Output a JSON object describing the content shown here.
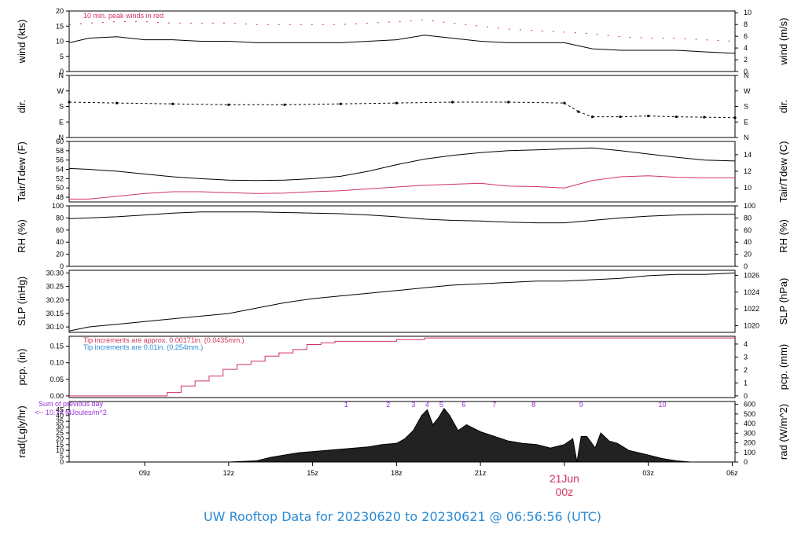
{
  "title": "UW Rooftop Data for 20230620  to  20230621 @ 06:56:56  (UTC)",
  "colors": {
    "primary": "#000000",
    "secondary": "#d1345b",
    "blue": "#2a8ad4",
    "purple": "#9b30d9"
  },
  "x_axis": {
    "ticks": [
      "09z",
      "12z",
      "15z",
      "18z",
      "21z",
      "00z",
      "03z",
      "06z"
    ],
    "date_label": "21Jun",
    "date_sub": "00z"
  },
  "chart_data": [
    {
      "type": "line",
      "ylabel": "wind (kts)",
      "ylabel_right": "wind (m/s)",
      "ylim": [
        0,
        20
      ],
      "yticks": [
        0,
        5,
        10,
        15,
        20
      ],
      "yticks_right": [
        0,
        2,
        4,
        6,
        8,
        10
      ],
      "annotation": "10 min. peak winds in red",
      "series": [
        {
          "x": [
            6.3,
            7,
            8,
            9,
            10,
            11,
            12,
            13,
            14,
            15,
            16,
            17,
            18,
            19,
            20,
            21,
            22,
            23,
            24,
            25,
            26,
            27,
            28,
            29,
            30.1
          ],
          "y": [
            9.5,
            11,
            11.5,
            10.5,
            10.5,
            10,
            10,
            9.5,
            9.5,
            9.5,
            9.5,
            10,
            10.5,
            12,
            11,
            10,
            9.5,
            9.5,
            9.5,
            7.5,
            7,
            7,
            7,
            6.5,
            6
          ]
        },
        {
          "x": [
            6.3,
            7,
            8,
            9,
            10,
            11,
            12,
            13,
            14,
            15,
            16,
            17,
            18,
            19,
            20,
            21,
            22,
            23,
            24,
            25,
            26,
            27,
            28,
            29,
            30.1
          ],
          "y": [
            15.5,
            16,
            16.5,
            16.5,
            16,
            16,
            16,
            15.5,
            15.5,
            15.5,
            15.5,
            16,
            16.5,
            17,
            16,
            15,
            14,
            13.5,
            13,
            12.5,
            11.5,
            11,
            11,
            10.5,
            10
          ]
        }
      ]
    },
    {
      "type": "scatter",
      "ylabel": "dir.",
      "ylabel_right": "dir.",
      "ytick_labels": [
        "N",
        "E",
        "S",
        "W",
        "N"
      ],
      "ylim": [
        0,
        360
      ],
      "series": [
        {
          "x": [
            6.3,
            8,
            10,
            12,
            14,
            16,
            18,
            20,
            22,
            24,
            24.5,
            25,
            26,
            27,
            28,
            29,
            30.1
          ],
          "y": [
            205,
            200,
            195,
            190,
            190,
            195,
            200,
            205,
            205,
            200,
            150,
            120,
            120,
            125,
            120,
            118,
            115
          ]
        }
      ]
    },
    {
      "type": "line",
      "ylabel": "Tair/Tdew (F)",
      "ylabel_right": "Tair/Tdew (C)",
      "ylim": [
        47,
        60
      ],
      "yticks": [
        48,
        50,
        52,
        54,
        56,
        58,
        60
      ],
      "yticks_right": [
        10,
        12,
        14
      ],
      "series": [
        {
          "x": [
            6.3,
            7,
            8,
            9,
            10,
            11,
            12,
            13,
            14,
            15,
            16,
            17,
            18,
            19,
            20,
            21,
            22,
            23,
            24,
            25,
            26,
            27,
            28,
            29,
            30.1
          ],
          "y": [
            54.2,
            54,
            53.6,
            53,
            52.4,
            52,
            51.7,
            51.6,
            51.7,
            52,
            52.5,
            53.6,
            55,
            56.2,
            57,
            57.6,
            58,
            58.2,
            58.4,
            58.6,
            58,
            57.3,
            56.6,
            56,
            55.8
          ]
        },
        {
          "x": [
            6.3,
            7,
            8,
            9,
            10,
            11,
            12,
            13,
            14,
            15,
            16,
            17,
            18,
            19,
            20,
            21,
            22,
            23,
            24,
            25,
            26,
            27,
            28,
            29,
            30.1
          ],
          "y": [
            47.6,
            47.6,
            48.2,
            48.8,
            49.2,
            49.2,
            49,
            48.8,
            48.9,
            49.2,
            49.4,
            49.8,
            50.2,
            50.6,
            50.8,
            51,
            50.4,
            50.3,
            50,
            51.6,
            52.4,
            52.6,
            52.3,
            52.2,
            52.2
          ]
        }
      ]
    },
    {
      "type": "line",
      "ylabel": "RH (%)",
      "ylabel_right": "RH (%)",
      "ylim": [
        0,
        100
      ],
      "yticks": [
        0,
        20,
        40,
        60,
        80,
        100
      ],
      "yticks_right": [
        0,
        20,
        40,
        60,
        80,
        100
      ],
      "series": [
        {
          "x": [
            6.3,
            7,
            8,
            9,
            10,
            11,
            12,
            13,
            14,
            15,
            16,
            17,
            18,
            19,
            20,
            21,
            22,
            23,
            24,
            25,
            26,
            27,
            28,
            29,
            30.1
          ],
          "y": [
            79,
            80,
            82,
            85,
            88,
            90,
            90,
            90,
            89,
            88,
            87,
            85,
            82,
            78,
            76,
            75,
            73,
            72,
            72,
            76,
            80,
            83,
            85,
            86,
            86
          ]
        }
      ]
    },
    {
      "type": "line",
      "ylabel": "SLP (inHg)",
      "ylabel_right": "SLP (hPa)",
      "ylim": [
        30.08,
        30.31
      ],
      "yticks": [
        30.1,
        30.15,
        30.2,
        30.25,
        30.3
      ],
      "yticks_right": [
        1020,
        1022,
        1024,
        1026
      ],
      "series": [
        {
          "x": [
            6.3,
            7,
            8,
            9,
            10,
            11,
            12,
            13,
            14,
            15,
            16,
            17,
            18,
            19,
            20,
            21,
            22,
            23,
            24,
            25,
            26,
            27,
            28,
            29,
            30.1
          ],
          "y": [
            30.085,
            30.1,
            30.11,
            30.12,
            30.13,
            30.14,
            30.15,
            30.17,
            30.19,
            30.205,
            30.215,
            30.225,
            30.235,
            30.245,
            30.255,
            30.26,
            30.265,
            30.27,
            30.27,
            30.275,
            30.28,
            30.29,
            30.295,
            30.295,
            30.3
          ]
        }
      ]
    },
    {
      "type": "line",
      "ylabel": "pcp. (in)",
      "ylabel_right": "pcp. (mm)",
      "ylim": [
        -0.005,
        0.18
      ],
      "yticks": [
        0.0,
        0.05,
        0.1,
        0.15
      ],
      "yticks_right": [
        0,
        1,
        2,
        3,
        4
      ],
      "annotations": [
        {
          "text": "Tip increments are approx. 0.00171in. (0.0435mm.)"
        },
        {
          "text": "Tip increments are 0.01in. (0.254mm.)"
        }
      ],
      "series": [
        {
          "x": [
            6.3,
            8,
            9.3,
            9.8,
            10.3,
            10.8,
            11.3,
            11.8,
            12.3,
            12.8,
            13.3,
            13.8,
            14.3,
            14.8,
            15.3,
            15.8,
            16.3,
            17.8,
            18.0,
            19.0,
            30.1
          ],
          "y": [
            0,
            0,
            0,
            0.01,
            0.03,
            0.045,
            0.06,
            0.08,
            0.095,
            0.105,
            0.12,
            0.13,
            0.14,
            0.155,
            0.16,
            0.165,
            0.165,
            0.165,
            0.17,
            0.175,
            0.175
          ]
        }
      ]
    },
    {
      "type": "area",
      "ylabel": "rad(Lgly/hr)",
      "ylabel_right": "rad (W/m^2)",
      "ylim": [
        0,
        52
      ],
      "yticks": [
        0,
        5,
        10,
        15,
        20,
        25,
        30,
        35,
        40,
        45
      ],
      "yticks_right": [
        0,
        100,
        200,
        300,
        400,
        500,
        600
      ],
      "annotations": [
        {
          "text": "Sum of previous day"
        },
        {
          "text": "<-- 10.74 MJoules/m^2"
        }
      ],
      "hour_labels": [
        {
          "x": 16.2,
          "text": "1"
        },
        {
          "x": 17.7,
          "text": "2"
        },
        {
          "x": 18.6,
          "text": "3"
        },
        {
          "x": 19.1,
          "text": "4"
        },
        {
          "x": 19.6,
          "text": "5"
        },
        {
          "x": 20.4,
          "text": "6"
        },
        {
          "x": 21.5,
          "text": "7"
        },
        {
          "x": 22.9,
          "text": "8"
        },
        {
          "x": 24.6,
          "text": "9"
        },
        {
          "x": 27.5,
          "text": "10"
        }
      ],
      "series": [
        {
          "x": [
            12,
            13,
            13.5,
            14,
            14.5,
            15,
            15.5,
            16,
            16.5,
            17,
            17.5,
            18,
            18.3,
            18.6,
            18.9,
            19.1,
            19.3,
            19.5,
            19.7,
            19.9,
            20.2,
            20.5,
            21,
            21.5,
            22,
            22.5,
            23,
            23.5,
            24,
            24.3,
            24.45,
            24.6,
            24.8,
            25.1,
            25.3,
            25.6,
            25.9,
            26.3,
            27,
            27.5,
            28,
            28.5
          ],
          "y": [
            0,
            1,
            4,
            6,
            8,
            9,
            10,
            11,
            12,
            13,
            15,
            16,
            20,
            27,
            40,
            45,
            32,
            38,
            46,
            40,
            27,
            32,
            26,
            22,
            18,
            16,
            15,
            12,
            15,
            20,
            0,
            22,
            22,
            12,
            25,
            18,
            16,
            10,
            6,
            3,
            1,
            0
          ]
        }
      ]
    }
  ]
}
